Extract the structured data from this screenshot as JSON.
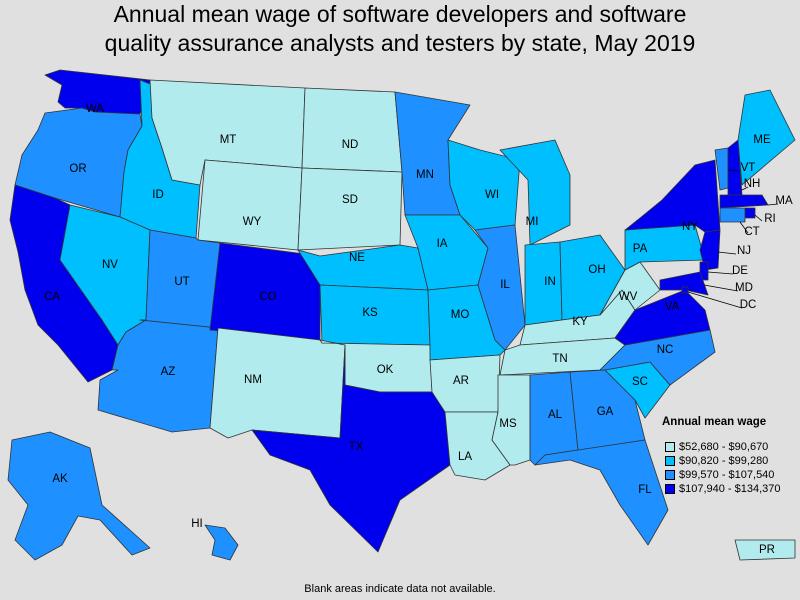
{
  "title_line1": "Annual mean wage of software developers and software",
  "title_line2": "quality assurance analysts and testers by state, May 2019",
  "legend": {
    "title": "Annual mean wage",
    "bins": [
      {
        "label": "$52,680 - $90,670",
        "color": "#b2ebed"
      },
      {
        "label": "$90,820 - $99,280",
        "color": "#00bfff"
      },
      {
        "label": "$99,570 - $107,540",
        "color": "#1e90ff"
      },
      {
        "label": "$107,940 - $134,370",
        "color": "#0000ee"
      }
    ]
  },
  "footnote": "Blank areas indicate data not available.",
  "chart_data": {
    "type": "choropleth",
    "title": "Annual mean wage of software developers and software quality assurance analysts and testers by state, May 2019",
    "legend_placement": "bottom-right",
    "states": [
      {
        "abbr": "WA",
        "bin": 3
      },
      {
        "abbr": "OR",
        "bin": 2
      },
      {
        "abbr": "CA",
        "bin": 3
      },
      {
        "abbr": "ID",
        "bin": 1
      },
      {
        "abbr": "NV",
        "bin": 1
      },
      {
        "abbr": "MT",
        "bin": 0
      },
      {
        "abbr": "WY",
        "bin": 0
      },
      {
        "abbr": "UT",
        "bin": 2
      },
      {
        "abbr": "AZ",
        "bin": 2
      },
      {
        "abbr": "CO",
        "bin": 3
      },
      {
        "abbr": "NM",
        "bin": 0
      },
      {
        "abbr": "ND",
        "bin": 0
      },
      {
        "abbr": "SD",
        "bin": 0
      },
      {
        "abbr": "NE",
        "bin": 1
      },
      {
        "abbr": "KS",
        "bin": 1
      },
      {
        "abbr": "OK",
        "bin": 0
      },
      {
        "abbr": "TX",
        "bin": 3
      },
      {
        "abbr": "MN",
        "bin": 2
      },
      {
        "abbr": "IA",
        "bin": 1
      },
      {
        "abbr": "MO",
        "bin": 1
      },
      {
        "abbr": "AR",
        "bin": 0
      },
      {
        "abbr": "LA",
        "bin": 0
      },
      {
        "abbr": "WI",
        "bin": 1
      },
      {
        "abbr": "IL",
        "bin": 2
      },
      {
        "abbr": "MI",
        "bin": 1
      },
      {
        "abbr": "IN",
        "bin": 1
      },
      {
        "abbr": "OH",
        "bin": 1
      },
      {
        "abbr": "KY",
        "bin": 0
      },
      {
        "abbr": "TN",
        "bin": 0
      },
      {
        "abbr": "MS",
        "bin": 0
      },
      {
        "abbr": "AL",
        "bin": 2
      },
      {
        "abbr": "GA",
        "bin": 2
      },
      {
        "abbr": "FL",
        "bin": 2
      },
      {
        "abbr": "SC",
        "bin": 1
      },
      {
        "abbr": "NC",
        "bin": 2
      },
      {
        "abbr": "VA",
        "bin": 3
      },
      {
        "abbr": "WV",
        "bin": 0
      },
      {
        "abbr": "PA",
        "bin": 1
      },
      {
        "abbr": "NY",
        "bin": 3
      },
      {
        "abbr": "VT",
        "bin": 2
      },
      {
        "abbr": "NH",
        "bin": 3
      },
      {
        "abbr": "ME",
        "bin": 1
      },
      {
        "abbr": "MA",
        "bin": 3
      },
      {
        "abbr": "RI",
        "bin": 3
      },
      {
        "abbr": "CT",
        "bin": 2
      },
      {
        "abbr": "NJ",
        "bin": 3
      },
      {
        "abbr": "DE",
        "bin": 3
      },
      {
        "abbr": "MD",
        "bin": 3
      },
      {
        "abbr": "DC",
        "bin": 3
      },
      {
        "abbr": "AK",
        "bin": 2
      },
      {
        "abbr": "HI",
        "bin": 2
      },
      {
        "abbr": "PR",
        "bin": 0
      }
    ]
  }
}
